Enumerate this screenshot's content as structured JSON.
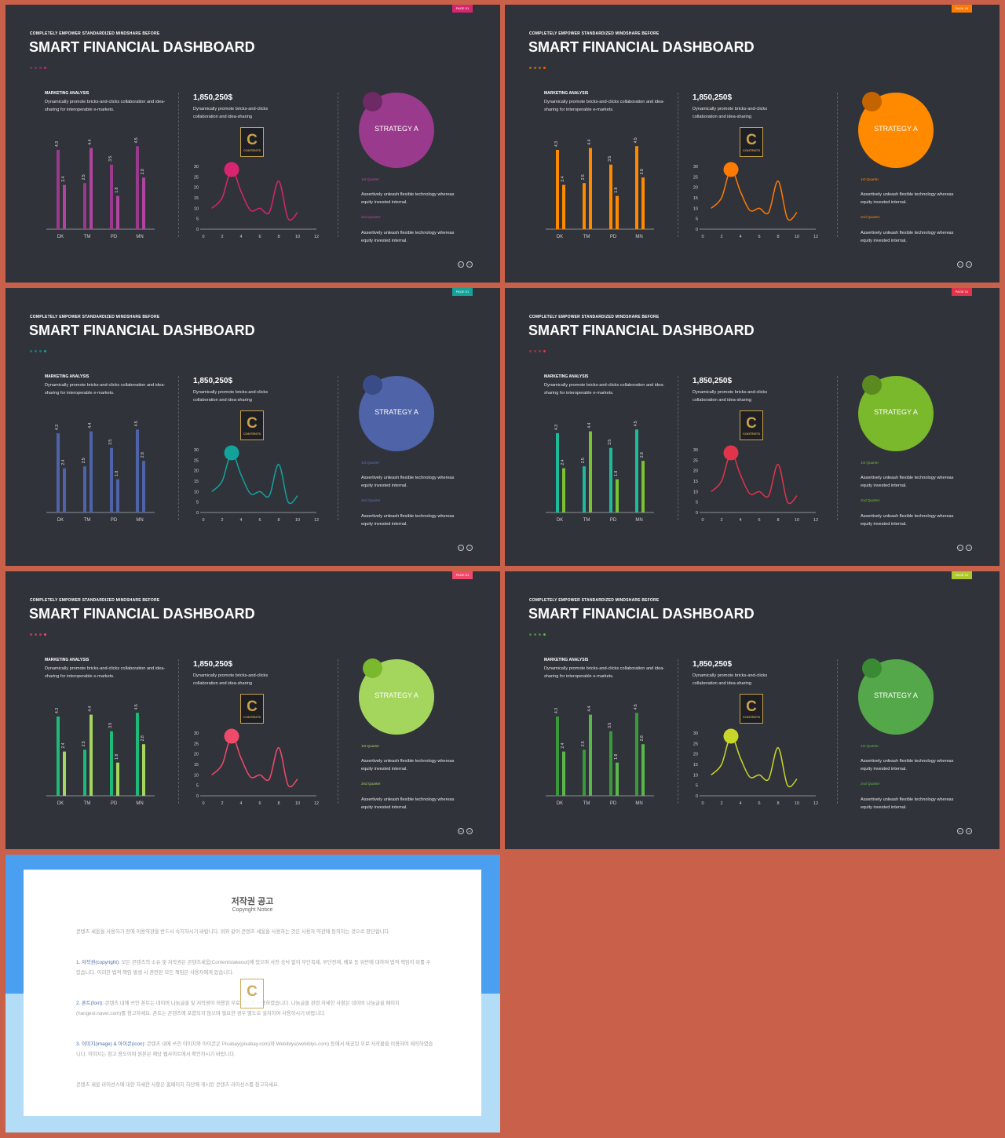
{
  "slides": [
    {
      "badge": "PAGE 01",
      "subtitle": "COMPLETELY EMPOWER STANDARDIZED MINDSHARE BEFORE",
      "title": "SMART FINANCIAL DASHBOARD",
      "colors": {
        "primary": "#9a3a8c",
        "secondary": "#b0449e",
        "accent": "#d8256f",
        "line": "#d8256f",
        "badge": "#d8256f",
        "circle": "#9a3a8c",
        "circle_small": "#6e2a64",
        "q_label": "#b24a9e",
        "dots": [
          "#9a3a8c",
          "#9a3a8c",
          "#9a3a8c",
          "#d8256f"
        ]
      }
    },
    {
      "badge": "PAGE 01",
      "subtitle": "COMPLETELY EMPOWER STANDARDIZED MINDSHARE BEFORE",
      "title": "SMART FINANCIAL DASHBOARD",
      "colors": {
        "primary": "#ff8a00",
        "secondary": "#ff8a00",
        "accent": "#ff6a00",
        "line": "#ff7a00",
        "badge": "#ff7a00",
        "circle": "#ff8a00",
        "circle_small": "#c46400",
        "q_label": "#ff8a00",
        "dots": [
          "#ff8a00",
          "#ff8a00",
          "#ff8a00",
          "#ff5a00"
        ]
      }
    },
    {
      "badge": "PAGE 01",
      "subtitle": "COMPLETELY EMPOWER STANDARDIZED MINDSHARE BEFORE",
      "title": "SMART FINANCIAL DASHBOARD",
      "colors": {
        "primary": "#4e63a8",
        "secondary": "#4e63a8",
        "accent": "#12a39a",
        "line": "#12a39a",
        "badge": "#12a39a",
        "circle": "#4e63a8",
        "circle_small": "#3a4c88",
        "q_label": "#5a70b8",
        "dots": [
          "#12a39a",
          "#12a39a",
          "#12a39a",
          "#12a39a"
        ]
      }
    },
    {
      "badge": "PAGE 01",
      "subtitle": "COMPLETELY EMPOWER STANDARDIZED MINDSHARE BEFORE",
      "title": "SMART FINANCIAL DASHBOARD",
      "colors": {
        "primary": "#1dbb9a",
        "secondary": "#7ac232",
        "accent": "#e0344a",
        "line": "#e0344a",
        "badge": "#e0344a",
        "circle": "#7ab82c",
        "circle_small": "#5a8a20",
        "q_label": "#7ab82c",
        "dots": [
          "#e0344a",
          "#e0344a",
          "#e0344a",
          "#e0344a"
        ]
      }
    },
    {
      "badge": "PAGE 01",
      "subtitle": "COMPLETELY EMPOWER STANDARDIZED MINDSHARE BEFORE",
      "title": "SMART FINANCIAL DASHBOARD",
      "colors": {
        "primary": "#1dbb7a",
        "secondary": "#a4d65e",
        "accent": "#f04a6a",
        "line": "#f04a6a",
        "badge": "#f04a6a",
        "circle": "#a4d65e",
        "circle_small": "#7ab82c",
        "q_label": "#a4d65e",
        "dots": [
          "#f04a6a",
          "#f04a6a",
          "#f04a6a",
          "#f04a6a"
        ]
      }
    },
    {
      "badge": "PAGE 01",
      "subtitle": "COMPLETELY EMPOWER STANDARDIZED MINDSHARE BEFORE",
      "title": "SMART FINANCIAL DASHBOARD",
      "colors": {
        "primary": "#3a9a3a",
        "secondary": "#5ab84a",
        "accent": "#c8d62a",
        "line": "#c8d62a",
        "badge": "#b0c830",
        "circle": "#54a84a",
        "circle_small": "#3a8a34",
        "q_label": "#5ab84a",
        "dots": [
          "#5ab84a",
          "#5ab84a",
          "#5ab84a",
          "#5ab84a"
        ]
      }
    }
  ],
  "common": {
    "ma_title": "MARKETING  ANALYSIS",
    "ma_desc": "Dynamically promote bricks-and-clicks collaboration and idea-sharing for interoperable e-markets.",
    "amount": "1,850,250$",
    "amount_desc": "Dynamically promote bricks-and-clicks collaboration and idea-sharing",
    "strategy": "STRATEGY A",
    "q1": "1st Quarter",
    "q2": "2nd Quarter",
    "q_text": "Assertively unleash flexible technology whereas equity invested internal.",
    "nav_prev": "←",
    "nav_next": "→",
    "logo_letter": "C",
    "logo_text": "CONTENTS"
  },
  "chart_data": [
    {
      "type": "bar",
      "categories": [
        "DK",
        "TM",
        "PD",
        "MN"
      ],
      "series": [
        {
          "values": [
            4.3,
            2.5,
            3.5,
            4.5
          ]
        },
        {
          "values": [
            2.4,
            4.4,
            1.8,
            2.8
          ]
        }
      ]
    },
    {
      "type": "line",
      "x": [
        0.9,
        2,
        3,
        4,
        5,
        6,
        7,
        8,
        9,
        10
      ],
      "y": [
        10,
        15,
        28.5,
        18,
        9,
        10,
        8,
        23,
        5,
        8
      ],
      "xticks": [
        "0",
        "2",
        "4",
        "6",
        "8",
        "10",
        "12"
      ],
      "yticks": [
        "0",
        "5",
        "10",
        "15",
        "20",
        "25",
        "30"
      ],
      "xlim": [
        0,
        12
      ],
      "ylim": [
        0,
        30
      ]
    }
  ],
  "notice": {
    "title": "저작권 공고",
    "subtitle": "Copyright Notice",
    "p0": "콘텐츠 세움을 사용하기 전에 이용약관을 반드시 숙지하시기 바랍니다. 위와 같이 콘텐츠 세움을 사용하는 것은 사용자 약관에 동의하는 것으로 판단합니다.",
    "p1_head": "1. 저작권(copyright):",
    "p1": " 모든 콘텐츠의 소유 및 저작권은 콘텐츠세움(Contentstakeout)에 있으며 사전 승낙 없이 무단복제, 무단전재, 배포 등 위반에 대하여 법적 책임이 따를 수 있습니다. 이러한 법적 책임 발생 시 관련된 모든 책임은 사용자에게 있습니다.",
    "p2_head": "2. 폰트(font):",
    "p2": " 콘텐츠 내에 쓰인 폰트는 네이버 나눔글꼴 및 저작권이 허용된 무료 폰트를 사용하였습니다. 나눔글꼴 관련 자세한 사항은 네이버 나눔글꼴 페이지(hangeul.naver.com)를 참고하세요. 폰트는 콘텐츠에 포함되지 않으며 필요한 경우 별도로 설치하여 사용하시기 바랍니다.",
    "p3_head": "3. 이미지(image) & 아이콘(icon):",
    "p3": " 콘텐츠 내에 쓰인 이미지와 아이콘은 Pixabay(pixabay.com)와 Webiblys(webiblys.com) 등에서 제공된 무료 저작물을 이용하여 제작하였습니다. 이미지는 참고 용도이며 원본은 해당 웹사이트에서 확인하시기 바랍니다.",
    "p4": "콘텐츠 세움 라이선스에 대한 자세한 사항은 홈페이지 하단에 게시된 콘텐츠 라이선스를 참고하세요."
  }
}
